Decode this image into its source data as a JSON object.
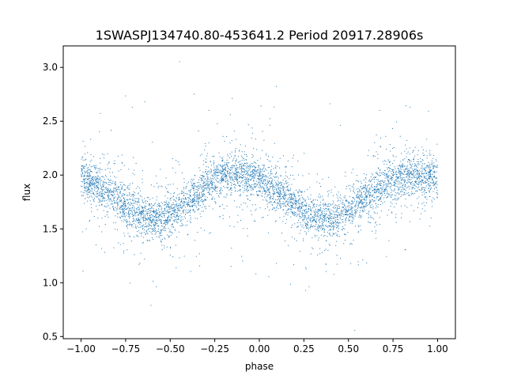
{
  "chart_data": {
    "type": "scatter",
    "title": "1SWASPJ134740.80-453641.2 Period 20917.28906s",
    "xlabel": "phase",
    "ylabel": "flux",
    "xlim": [
      -1.1,
      1.1
    ],
    "ylim": [
      0.48,
      3.2
    ],
    "xticks": [
      -1.0,
      -0.75,
      -0.5,
      -0.25,
      0.0,
      0.25,
      0.5,
      0.75,
      1.0
    ],
    "xtick_labels": [
      "−1.00",
      "−0.75",
      "−0.50",
      "−0.25",
      "0.00",
      "0.25",
      "0.50",
      "0.75",
      "1.00"
    ],
    "yticks": [
      0.5,
      1.0,
      1.5,
      2.0,
      2.5,
      3.0
    ],
    "ytick_labels": [
      "0.5",
      "1.0",
      "1.5",
      "2.0",
      "2.5",
      "3.0"
    ],
    "grid": false,
    "legend": "none",
    "point_color": "#1f77b4",
    "series": [
      {
        "name": "",
        "x": [
          -1.0,
          -0.9,
          -0.8,
          -0.7,
          -0.6,
          -0.55,
          -0.5,
          -0.4,
          -0.3,
          -0.2,
          -0.15,
          -0.1,
          0.0,
          0.1,
          0.2,
          0.3,
          0.4,
          0.45,
          0.5,
          0.6,
          0.7,
          0.8,
          0.85,
          0.9,
          1.0
        ],
        "y": [
          1.98,
          1.9,
          1.78,
          1.66,
          1.6,
          1.59,
          1.62,
          1.75,
          1.9,
          2.0,
          2.02,
          2.0,
          1.95,
          1.84,
          1.72,
          1.62,
          1.59,
          1.6,
          1.66,
          1.78,
          1.9,
          1.98,
          2.01,
          2.0,
          1.98
        ]
      }
    ]
  }
}
